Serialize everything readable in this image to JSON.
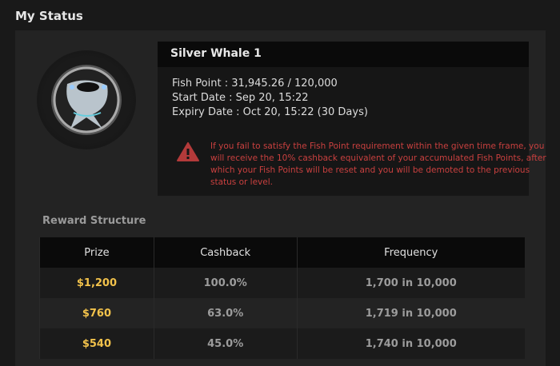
{
  "page_title": "My Status",
  "status": {
    "name": "Silver Whale 1",
    "fish_point": "Fish Point : 31,945.26 / 120,000",
    "start_date": "Start Date : Sep 20, 15:22",
    "expiry_date": "Expiry Date : Oct 20, 15:22 (30 Days)",
    "warning": "If you fail to satisfy the Fish Point requirement within the given time frame, you will receive the 10% cashback equivalent of your accumulated Fish Points, after which your Fish Points will be reset and you will be demoted to the previous status or level.",
    "warning_icon": "warning-triangle-icon",
    "warning_color": "#c9403f"
  },
  "reward": {
    "title": "Reward Structure",
    "headers": [
      "Prize",
      "Cashback",
      "Frequency"
    ],
    "rows": [
      [
        "$1,200",
        "100.0%",
        "1,700 in 10,000"
      ],
      [
        "$760",
        "63.0%",
        "1,719 in 10,000"
      ],
      [
        "$540",
        "45.0%",
        "1,740 in 10,000"
      ]
    ],
    "prize_color": "#f2c24b"
  }
}
